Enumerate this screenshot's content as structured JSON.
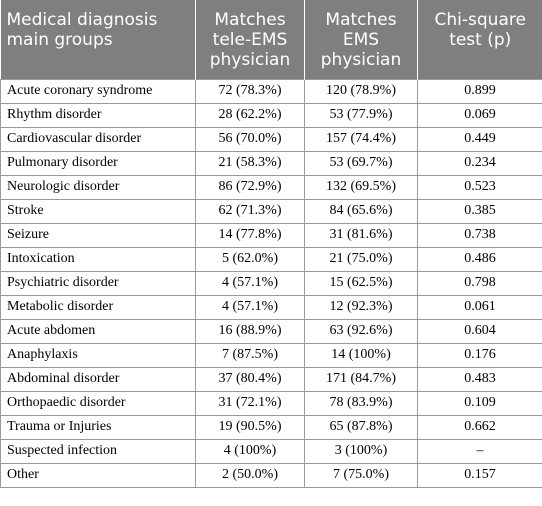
{
  "table": {
    "headers": [
      [
        "Medical diagnosis",
        "main groups"
      ],
      [
        "Matches",
        "tele-EMS",
        "physician"
      ],
      [
        "Matches",
        "EMS",
        "physician"
      ],
      [
        "Chi-square",
        "test (p)"
      ]
    ],
    "rows": [
      [
        "Acute coronary syndrome",
        "72 (78.3%)",
        "120 (78.9%)",
        "0.899"
      ],
      [
        "Rhythm disorder",
        "28 (62.2%)",
        "53 (77.9%)",
        "0.069"
      ],
      [
        "Cardiovascular disorder",
        "56 (70.0%)",
        "157 (74.4%)",
        "0.449"
      ],
      [
        "Pulmonary disorder",
        "21 (58.3%)",
        "53 (69.7%)",
        "0.234"
      ],
      [
        "Neurologic disorder",
        "86 (72.9%)",
        "132 (69.5%)",
        "0.523"
      ],
      [
        "Stroke",
        "62 (71.3%)",
        "84 (65.6%)",
        "0.385"
      ],
      [
        "Seizure",
        "14 (77.8%)",
        "31 (81.6%)",
        "0.738"
      ],
      [
        "Intoxication",
        "5 (62.0%)",
        "21 (75.0%)",
        "0.486"
      ],
      [
        "Psychiatric disorder",
        "4 (57.1%)",
        "15 (62.5%)",
        "0.798"
      ],
      [
        "Metabolic disorder",
        "4 (57.1%)",
        "12 (92.3%)",
        "0.061"
      ],
      [
        "Acute abdomen",
        "16 (88.9%)",
        "63 (92.6%)",
        "0.604"
      ],
      [
        "Anaphylaxis",
        "7 (87.5%)",
        "14 (100%)",
        "0.176"
      ],
      [
        "Abdominal disorder",
        "37 (80.4%)",
        "171 (84.7%)",
        "0.483"
      ],
      [
        "Orthopaedic disorder",
        "31 (72.1%)",
        "78 (83.9%)",
        "0.109"
      ],
      [
        "Trauma or Injuries",
        "19 (90.5%)",
        "65 (87.8%)",
        "0.662"
      ],
      [
        "Suspected infection",
        "4 (100%)",
        "3 (100%)",
        "–"
      ],
      [
        "Other",
        "2 (50.0%)",
        "7 (75.0%)",
        "0.157"
      ]
    ]
  }
}
